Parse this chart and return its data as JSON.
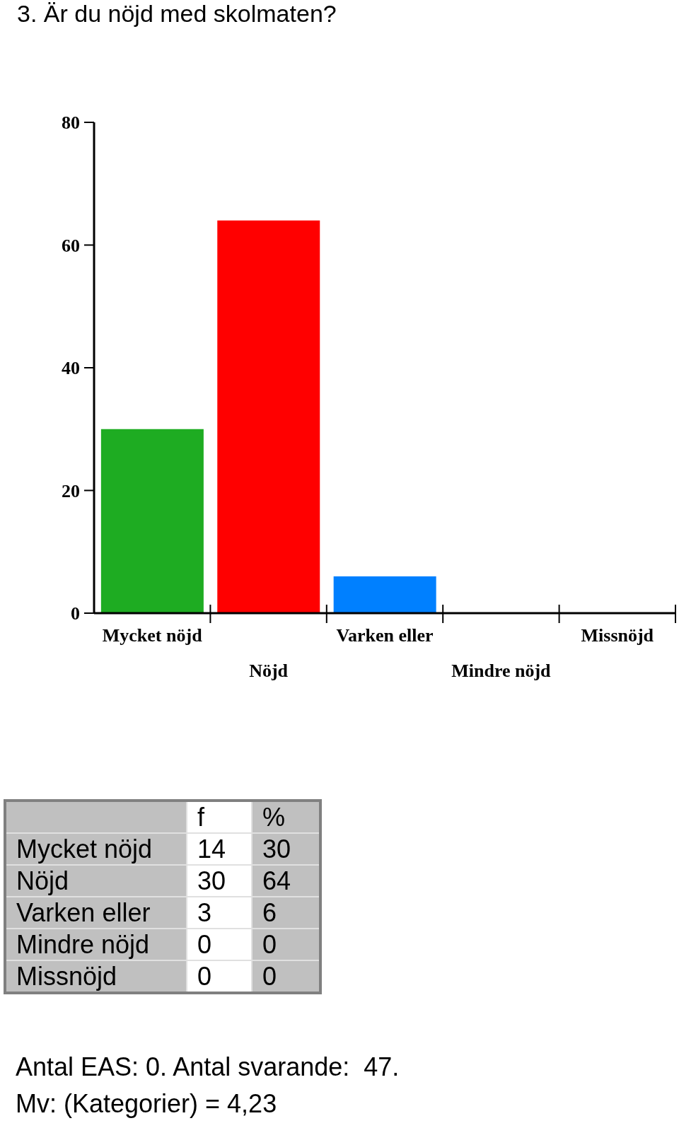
{
  "chart_data": {
    "type": "bar",
    "title": "3. Är du nöjd med skolmaten?",
    "categories": [
      "Mycket nöjd",
      "Nöjd",
      "Varken eller",
      "Mindre nöjd",
      "Missnöjd"
    ],
    "values": [
      30,
      64,
      6,
      0,
      0
    ],
    "colors": [
      "#1eac22",
      "#ff0000",
      "#0080ff",
      "#c0c0c0",
      "#c0c0c0"
    ],
    "ylim": [
      0,
      80
    ],
    "yticks": [
      0,
      20,
      40,
      60,
      80
    ],
    "grid": false,
    "legend": false,
    "annotations": [
      "f",
      "%",
      "14",
      "30",
      "30",
      "64",
      "3",
      "6",
      "0",
      "0",
      "0",
      "0",
      "Antal EAS: 0. Antal svarande:  47.",
      "Mv: (Kategorier) = 4,23"
    ]
  }
}
